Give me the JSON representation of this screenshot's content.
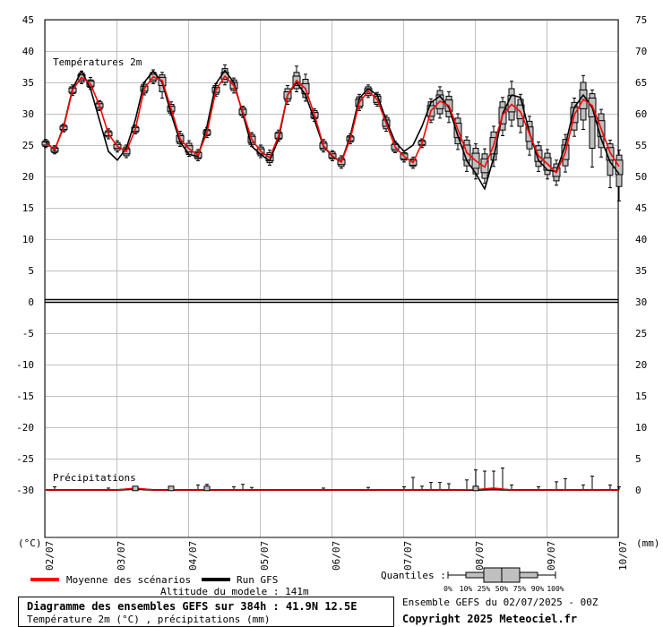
{
  "chart_data": {
    "type": "line",
    "x_tick_labels": [
      "02/07",
      "03/07",
      "04/07",
      "05/07",
      "06/07",
      "07/07",
      "08/07",
      "09/07",
      "10/07"
    ],
    "y_left_ticks": [
      "45",
      "40",
      "35",
      "30",
      "25",
      "20",
      "15",
      "10",
      "5",
      "0",
      "-5",
      "-10",
      "-15",
      "-20",
      "-25",
      "-30"
    ],
    "y_right_ticks": [
      "75",
      "70",
      "65",
      "60",
      "55",
      "50",
      "45",
      "40",
      "35",
      "30",
      "25",
      "20",
      "15",
      "10",
      "5",
      "0"
    ],
    "left_unit": "(°C)",
    "right_unit": "(mm)",
    "temperature_label": "Températures 2m",
    "precip_label": "Précipitations",
    "ylim": [
      -30,
      45
    ],
    "x_range_days": [
      0,
      16
    ],
    "temperature_mean": {
      "x": [
        0,
        0.25,
        0.5,
        0.75,
        1,
        1.25,
        1.5,
        1.75,
        2,
        2.25,
        2.5,
        2.75,
        3,
        3.25,
        3.5,
        3.75,
        4,
        4.25,
        4.5,
        4.75,
        5,
        5.25,
        5.5,
        5.75,
        6,
        6.25,
        6.5,
        6.75,
        7,
        7.25,
        7.5,
        7.75,
        8,
        8.25,
        8.5,
        8.75,
        9,
        9.25,
        9.5,
        9.75,
        10,
        10.25,
        10.5,
        10.75,
        11,
        11.25,
        11.5,
        11.75,
        12,
        12.25,
        12.5,
        12.75,
        13,
        13.25,
        13.5,
        13.75,
        14,
        14.25,
        14.5,
        14.75,
        15,
        15.25,
        15.5,
        15.75,
        16
      ],
      "y": [
        25.3,
        24.3,
        27.8,
        33.8,
        35.8,
        34.8,
        31.3,
        26.8,
        24.8,
        24,
        27.5,
        34,
        35.9,
        35.3,
        30.8,
        26,
        24.4,
        23.4,
        27,
        33.8,
        36,
        34.5,
        30.3,
        25.9,
        24,
        23,
        26.5,
        33,
        35.3,
        34,
        29.8,
        24.9,
        23.3,
        22.3,
        26,
        31.8,
        33.6,
        32.3,
        28.5,
        24.7,
        23.2,
        22.2,
        25.3,
        30.5,
        32,
        31.3,
        27.5,
        23.8,
        22.5,
        21.5,
        25,
        29.8,
        31.5,
        30.3,
        26.8,
        23.3,
        22,
        20.6,
        23.8,
        29.8,
        32.3,
        31.3,
        27.6,
        23.8,
        21.6
      ]
    },
    "temperature_run": {
      "x": [
        0,
        0.25,
        0.5,
        0.75,
        1,
        1.25,
        1.5,
        1.75,
        2,
        2.25,
        2.5,
        2.75,
        3,
        3.25,
        3.5,
        3.75,
        4,
        4.25,
        4.5,
        4.75,
        5,
        5.25,
        5.5,
        5.75,
        6,
        6.25,
        6.5,
        6.75,
        7,
        7.25,
        7.5,
        7.75,
        8,
        8.25,
        8.5,
        8.75,
        9,
        9.25,
        9.5,
        9.75,
        10,
        10.25,
        10.5,
        10.75,
        11,
        11.25,
        11.5,
        11.75,
        12,
        12.25,
        12.5,
        12.75,
        13,
        13.25,
        13.5,
        13.75,
        14,
        14.25,
        14.5,
        14.75,
        15,
        15.25,
        15.5,
        15.75,
        16
      ],
      "y": [
        25.5,
        24.2,
        28,
        34,
        36.8,
        34,
        29,
        24,
        22.6,
        24.5,
        29,
        35,
        36.8,
        35,
        30,
        25.5,
        23.5,
        23.2,
        28,
        34.8,
        36.9,
        35,
        30,
        24.8,
        23.5,
        22.5,
        26,
        33,
        35,
        33,
        29,
        24.8,
        23.2,
        22.3,
        26.5,
        32.5,
        34,
        33,
        29,
        25.5,
        24,
        25,
        28,
        31.8,
        32.8,
        31,
        26.5,
        22.5,
        20.5,
        18,
        23,
        30,
        33,
        32.6,
        27,
        22.6,
        21,
        20.8,
        25,
        31,
        33,
        31,
        26,
        22.3,
        20.4
      ]
    },
    "temperature_boxes": [
      {
        "x": 0,
        "min": 24.6,
        "q10": 24.8,
        "q25": 25,
        "median": 25.3,
        "q75": 25.5,
        "q90": 25.7,
        "max": 25.9
      },
      {
        "x": 0.25,
        "min": 23.6,
        "q10": 23.8,
        "q25": 24,
        "median": 24.3,
        "q75": 24.5,
        "q90": 24.7,
        "max": 24.9
      },
      {
        "x": 0.5,
        "min": 27.1,
        "q10": 27.3,
        "q25": 27.5,
        "median": 27.8,
        "q75": 28.0,
        "q90": 28.2,
        "max": 28.4
      },
      {
        "x": 0.75,
        "min": 32.9,
        "q10": 33.2,
        "q25": 33.4,
        "median": 33.8,
        "q75": 34.1,
        "q90": 34.3,
        "max": 34.6
      },
      {
        "x": 1,
        "min": 34.8,
        "q10": 35.1,
        "q25": 35.4,
        "median": 35.8,
        "q75": 36.2,
        "q90": 36.5,
        "max": 36.8
      },
      {
        "x": 1.25,
        "min": 33.9,
        "q10": 34.2,
        "q25": 34.4,
        "median": 34.8,
        "q75": 35.2,
        "q90": 35.4,
        "max": 35.8
      },
      {
        "x": 1.5,
        "min": 30.5,
        "q10": 30.7,
        "q25": 31,
        "median": 31.3,
        "q75": 31.6,
        "q90": 31.9,
        "max": 32.1
      },
      {
        "x": 1.75,
        "min": 26,
        "q10": 26.3,
        "q25": 26.5,
        "median": 26.8,
        "q75": 27.1,
        "q90": 27.3,
        "max": 27.6
      },
      {
        "x": 2,
        "min": 23.9,
        "q10": 24.2,
        "q25": 24.5,
        "median": 24.8,
        "q75": 25.1,
        "q90": 25.4,
        "max": 25.7
      },
      {
        "x": 2.25,
        "min": 23,
        "q10": 23.3,
        "q25": 23.6,
        "median": 24,
        "q75": 24.4,
        "q90": 24.7,
        "max": 25
      },
      {
        "x": 2.5,
        "min": 26.8,
        "q10": 27,
        "q25": 27.2,
        "median": 27.5,
        "q75": 27.8,
        "q90": 28,
        "max": 28.2
      },
      {
        "x": 2.75,
        "min": 33,
        "q10": 33.3,
        "q25": 33.6,
        "median": 34,
        "q75": 34.4,
        "q90": 34.7,
        "max": 35
      },
      {
        "x": 3,
        "min": 34.8,
        "q10": 35.1,
        "q25": 35.4,
        "median": 35.9,
        "q75": 36.3,
        "q90": 36.6,
        "max": 37
      },
      {
        "x": 3.25,
        "min": 32.5,
        "q10": 33.5,
        "q25": 34.5,
        "median": 35.3,
        "q75": 35.8,
        "q90": 36.2,
        "max": 36.6
      },
      {
        "x": 3.5,
        "min": 29.8,
        "q10": 30.1,
        "q25": 30.4,
        "median": 30.8,
        "q75": 31.2,
        "q90": 31.5,
        "max": 31.9
      },
      {
        "x": 3.75,
        "min": 24.8,
        "q10": 25.2,
        "q25": 25.5,
        "median": 26,
        "q75": 26.5,
        "q90": 26.8,
        "max": 27.2
      },
      {
        "x": 4,
        "min": 23.2,
        "q10": 23.5,
        "q25": 23.9,
        "median": 24.4,
        "q75": 24.9,
        "q90": 25.3,
        "max": 25.7
      },
      {
        "x": 4.25,
        "min": 22.5,
        "q10": 22.8,
        "q25": 23,
        "median": 23.4,
        "q75": 23.8,
        "q90": 24,
        "max": 24.3
      },
      {
        "x": 4.5,
        "min": 26.2,
        "q10": 26.5,
        "q25": 26.7,
        "median": 27,
        "q75": 27.3,
        "q90": 27.5,
        "max": 27.8
      },
      {
        "x": 4.75,
        "min": 32.8,
        "q10": 33.1,
        "q25": 33.4,
        "median": 33.8,
        "q75": 34.2,
        "q90": 34.5,
        "max": 34.8
      },
      {
        "x": 5,
        "min": 34.6,
        "q10": 35,
        "q25": 35.5,
        "median": 36,
        "q75": 36.6,
        "q90": 37.2,
        "max": 37.8
      },
      {
        "x": 5.25,
        "min": 33.3,
        "q10": 33.7,
        "q25": 34,
        "median": 34.5,
        "q75": 35,
        "q90": 35.4,
        "max": 35.7
      },
      {
        "x": 5.5,
        "min": 29.4,
        "q10": 29.7,
        "q25": 29.9,
        "median": 30.3,
        "q75": 30.7,
        "q90": 31,
        "max": 31.2
      },
      {
        "x": 5.75,
        "min": 24.8,
        "q10": 25.1,
        "q25": 25.4,
        "median": 25.9,
        "q75": 26.4,
        "q90": 26.7,
        "max": 27
      },
      {
        "x": 6,
        "min": 23,
        "q10": 23.3,
        "q25": 23.6,
        "median": 24,
        "q75": 24.4,
        "q90": 24.7,
        "max": 25
      },
      {
        "x": 6.25,
        "min": 21.8,
        "q10": 22.2,
        "q25": 22.5,
        "median": 23,
        "q75": 23.5,
        "q90": 23.8,
        "max": 24.2
      },
      {
        "x": 6.5,
        "min": 25.6,
        "q10": 25.9,
        "q25": 26.1,
        "median": 26.5,
        "q75": 26.9,
        "q90": 27.1,
        "max": 27.4
      },
      {
        "x": 6.75,
        "min": 31.5,
        "q10": 32,
        "q25": 32.4,
        "median": 33,
        "q75": 33.5,
        "q90": 34,
        "max": 34.5
      },
      {
        "x": 7,
        "min": 33.5,
        "q10": 34,
        "q25": 34.5,
        "median": 35.3,
        "q75": 36,
        "q90": 36.6,
        "max": 37.6
      },
      {
        "x": 7.25,
        "min": 32,
        "q10": 32.6,
        "q25": 33.2,
        "median": 34,
        "q75": 34.8,
        "q90": 35.5,
        "max": 36.3
      },
      {
        "x": 7.5,
        "min": 28.8,
        "q10": 29.2,
        "q25": 29.4,
        "median": 29.8,
        "q75": 30.2,
        "q90": 30.5,
        "max": 30.8
      },
      {
        "x": 7.75,
        "min": 23.9,
        "q10": 24.2,
        "q25": 24.5,
        "median": 24.9,
        "q75": 25.3,
        "q90": 25.6,
        "max": 25.9
      },
      {
        "x": 8,
        "min": 22.5,
        "q10": 22.8,
        "q25": 23,
        "median": 23.3,
        "q75": 23.6,
        "q90": 23.9,
        "max": 24.1
      },
      {
        "x": 8.25,
        "min": 21.3,
        "q10": 21.6,
        "q25": 21.9,
        "median": 22.3,
        "q75": 22.7,
        "q90": 23,
        "max": 23.3
      },
      {
        "x": 8.5,
        "min": 25.2,
        "q10": 25.5,
        "q25": 25.7,
        "median": 26,
        "q75": 26.3,
        "q90": 26.5,
        "max": 26.8
      },
      {
        "x": 8.75,
        "min": 30.5,
        "q10": 30.9,
        "q25": 31.2,
        "median": 31.8,
        "q75": 32.3,
        "q90": 32.7,
        "max": 33.1
      },
      {
        "x": 9,
        "min": 32.6,
        "q10": 32.9,
        "q25": 33.2,
        "median": 33.6,
        "q75": 34,
        "q90": 34.3,
        "max": 34.6
      },
      {
        "x": 9.25,
        "min": 31.2,
        "q10": 31.5,
        "q25": 31.8,
        "median": 32.3,
        "q75": 32.8,
        "q90": 33.1,
        "max": 33.4
      },
      {
        "x": 9.5,
        "min": 27.2,
        "q10": 27.6,
        "q25": 28,
        "median": 28.5,
        "q75": 29,
        "q90": 29.4,
        "max": 29.7
      },
      {
        "x": 9.75,
        "min": 23.8,
        "q10": 24,
        "q25": 24.3,
        "median": 24.7,
        "q75": 25.1,
        "q90": 25.3,
        "max": 25.6
      },
      {
        "x": 10,
        "min": 22.3,
        "q10": 22.6,
        "q25": 22.8,
        "median": 23.2,
        "q75": 23.6,
        "q90": 23.8,
        "max": 24.1
      },
      {
        "x": 10.25,
        "min": 21.3,
        "q10": 21.6,
        "q25": 21.8,
        "median": 22.2,
        "q75": 22.6,
        "q90": 22.8,
        "max": 23.1
      },
      {
        "x": 10.5,
        "min": 24.6,
        "q10": 24.9,
        "q25": 25.1,
        "median": 25.3,
        "q75": 25.6,
        "q90": 25.8,
        "max": 26
      },
      {
        "x": 10.75,
        "min": 28.6,
        "q10": 29,
        "q25": 29.6,
        "median": 30.5,
        "q75": 31.3,
        "q90": 31.9,
        "max": 32.4
      },
      {
        "x": 11,
        "min": 29.3,
        "q10": 30,
        "q25": 30.8,
        "median": 32,
        "q75": 33,
        "q90": 33.7,
        "max": 34.3
      },
      {
        "x": 11.25,
        "min": 28.6,
        "q10": 29.5,
        "q25": 30.4,
        "median": 31.3,
        "q75": 32.2,
        "q90": 32.8,
        "max": 33.5
      },
      {
        "x": 11.5,
        "min": 24.3,
        "q10": 25.2,
        "q25": 26.2,
        "median": 27.5,
        "q75": 28.5,
        "q90": 29.3,
        "max": 30
      },
      {
        "x": 11.75,
        "min": 20.8,
        "q10": 21.7,
        "q25": 22.6,
        "median": 23.8,
        "q75": 25,
        "q90": 25.8,
        "max": 26.3
      },
      {
        "x": 12,
        "min": 19.6,
        "q10": 20.4,
        "q25": 21.3,
        "median": 22.5,
        "q75": 23.7,
        "q90": 24.5,
        "max": 25.2
      },
      {
        "x": 12.25,
        "min": 18.9,
        "q10": 19.7,
        "q25": 20.6,
        "median": 21.5,
        "q75": 22.8,
        "q90": 23.6,
        "max": 24.4
      },
      {
        "x": 12.5,
        "min": 21.6,
        "q10": 22.6,
        "q25": 23.6,
        "median": 25,
        "q75": 26.2,
        "q90": 27.1,
        "max": 28
      },
      {
        "x": 12.75,
        "min": 26.5,
        "q10": 27.4,
        "q25": 28.4,
        "median": 29.8,
        "q75": 31,
        "q90": 31.9,
        "max": 32.6
      },
      {
        "x": 13,
        "min": 28,
        "q10": 29,
        "q25": 30.3,
        "median": 31.5,
        "q75": 32.9,
        "q90": 34,
        "max": 35.2
      },
      {
        "x": 13.25,
        "min": 27,
        "q10": 28,
        "q25": 29.2,
        "median": 30.3,
        "q75": 31.4,
        "q90": 32.3,
        "max": 33.1
      },
      {
        "x": 13.5,
        "min": 23.4,
        "q10": 24.4,
        "q25": 25.6,
        "median": 26.8,
        "q75": 27.9,
        "q90": 28.8,
        "max": 29.6
      },
      {
        "x": 13.75,
        "min": 20.8,
        "q10": 21.6,
        "q25": 22.4,
        "median": 23.3,
        "q75": 24.2,
        "q90": 24.9,
        "max": 25.5
      },
      {
        "x": 14,
        "min": 19.6,
        "q10": 20.3,
        "q25": 21,
        "median": 22,
        "q75": 23,
        "q90": 23.7,
        "max": 24.3
      },
      {
        "x": 14.25,
        "min": 18.6,
        "q10": 19.3,
        "q25": 20,
        "median": 20.6,
        "q75": 21.4,
        "q90": 22,
        "max": 22.6
      },
      {
        "x": 14.5,
        "min": 20.7,
        "q10": 21.7,
        "q25": 22.7,
        "median": 23.8,
        "q75": 25,
        "q90": 25.9,
        "max": 26.7
      },
      {
        "x": 14.75,
        "min": 26.4,
        "q10": 27.4,
        "q25": 28.6,
        "median": 29.8,
        "q75": 31,
        "q90": 31.8,
        "max": 32.5
      },
      {
        "x": 15,
        "min": 27.5,
        "q10": 29,
        "q25": 30.8,
        "median": 32.3,
        "q75": 33.8,
        "q90": 35,
        "max": 36.1
      },
      {
        "x": 15.25,
        "min": 21.5,
        "q10": 24.5,
        "q25": 29.5,
        "median": 31.3,
        "q75": 32.5,
        "q90": 33.2,
        "max": 33.8
      },
      {
        "x": 15.5,
        "min": 23.1,
        "q10": 24.6,
        "q25": 26.4,
        "median": 27.6,
        "q75": 28.9,
        "q90": 30,
        "max": 30.7
      },
      {
        "x": 15.75,
        "min": 18.2,
        "q10": 20.2,
        "q25": 22.6,
        "median": 23.8,
        "q75": 24.6,
        "q90": 25.2,
        "max": 25.8
      },
      {
        "x": 16,
        "min": 16.1,
        "q10": 18.4,
        "q25": 20.3,
        "median": 21.6,
        "q75": 22.6,
        "q90": 23.4,
        "max": 24.2
      }
    ],
    "precip_mean": {
      "x": [
        0,
        1,
        2,
        2.5,
        3,
        4,
        5,
        6,
        7,
        8,
        9,
        9.5,
        10,
        11,
        11.5,
        12,
        12.5,
        13,
        14,
        15,
        16
      ],
      "y": [
        0,
        0,
        0,
        0.3,
        0,
        0,
        0,
        0,
        0,
        0,
        0,
        0,
        0,
        0,
        0,
        0.05,
        0.3,
        0,
        0,
        0,
        0
      ]
    },
    "precip_run": {
      "x": [
        0,
        1,
        2,
        2.5,
        3,
        4,
        5,
        6,
        7,
        8,
        9,
        9.5,
        10,
        11,
        11.5,
        12,
        12.5,
        13,
        14,
        15,
        16
      ],
      "y": [
        0,
        0,
        0,
        0.2,
        0,
        0,
        0,
        0,
        0,
        0,
        0,
        0,
        0,
        0,
        0,
        0,
        0.1,
        0,
        0,
        0,
        0
      ]
    },
    "precip_whiskers": [
      {
        "x": 0.25,
        "max": 0.5
      },
      {
        "x": 1.75,
        "max": 0.3
      },
      {
        "x": 2.5,
        "max": 0.4
      },
      {
        "x": 3.5,
        "max": 0.3
      },
      {
        "x": 4.25,
        "max": 0.8
      },
      {
        "x": 4.5,
        "max": 0.9
      },
      {
        "x": 5.25,
        "max": 0.5
      },
      {
        "x": 5.5,
        "max": 0.9
      },
      {
        "x": 5.75,
        "max": 0.4
      },
      {
        "x": 7.75,
        "max": 0.3
      },
      {
        "x": 9,
        "max": 0.4
      },
      {
        "x": 10,
        "max": 0.5
      },
      {
        "x": 10.25,
        "max": 2.0
      },
      {
        "x": 10.5,
        "max": 0.6
      },
      {
        "x": 10.75,
        "max": 1.2
      },
      {
        "x": 11,
        "max": 1.2
      },
      {
        "x": 11.25,
        "max": 1.0
      },
      {
        "x": 11.75,
        "max": 1.6
      },
      {
        "x": 12,
        "max": 3.2
      },
      {
        "x": 12.25,
        "max": 3.0
      },
      {
        "x": 12.5,
        "max": 3.0
      },
      {
        "x": 12.75,
        "max": 3.5
      },
      {
        "x": 13,
        "max": 0.8
      },
      {
        "x": 13.75,
        "max": 0.5
      },
      {
        "x": 14.25,
        "max": 1.3
      },
      {
        "x": 14.5,
        "max": 1.8
      },
      {
        "x": 15,
        "max": 0.8
      },
      {
        "x": 15.25,
        "max": 2.2
      },
      {
        "x": 15.75,
        "max": 0.8
      },
      {
        "x": 16,
        "max": 0.5
      }
    ]
  },
  "legend": {
    "mean_label": "Moyenne des scénarios",
    "run_label": "Run GFS",
    "quantiles_label": "Quantiles :",
    "quantile_ticks": [
      "0%",
      "10%",
      "25%",
      "50%",
      "75%",
      "90%",
      "100%"
    ],
    "altitude_label": "Altitude du modele : 141m",
    "ensemble_label": "Ensemble GEFS du 02/07/2025 - 00Z",
    "copyright": "Copyright 2025 Meteociel.fr"
  },
  "title_box": {
    "line1": "Diagramme des ensembles GEFS sur 384h : 41.9N 12.5E",
    "line2": "Température 2m (°C) , précipitations (mm)"
  },
  "colors": {
    "mean": "#ff0000",
    "run": "#000000",
    "box_fill": "#c0c0c0",
    "grid": "#c0c0c0"
  }
}
